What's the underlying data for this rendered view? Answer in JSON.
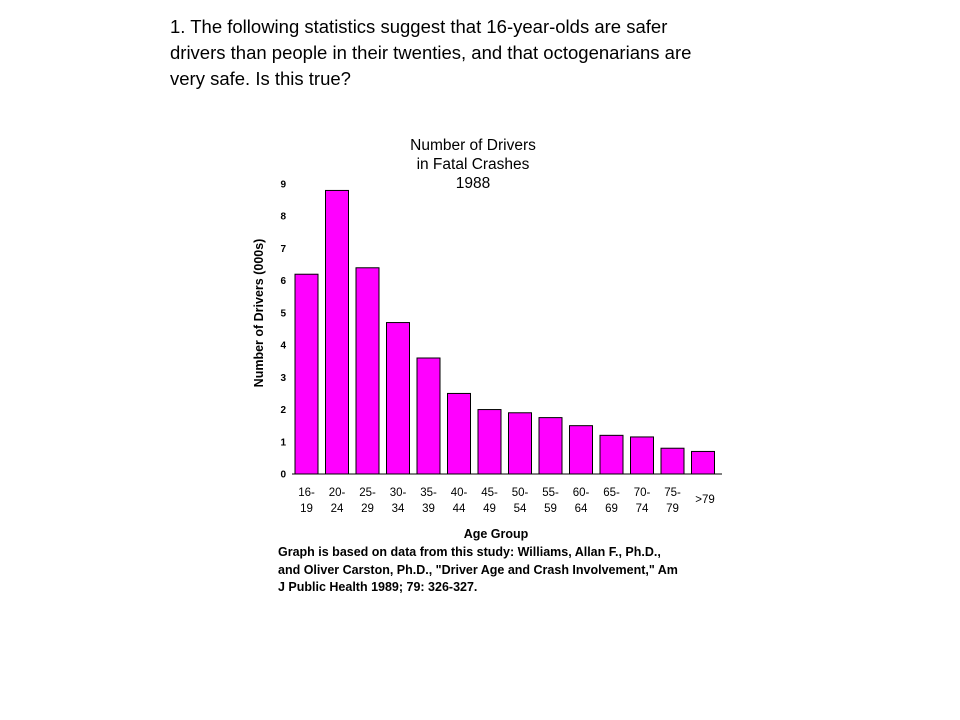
{
  "question": {
    "lines": [
      "1.  The following statistics suggest that 16-year-olds are safer",
      "drivers than people in their twenties, and that octogenarians are",
      "very safe.  Is this true?"
    ]
  },
  "chart_data": {
    "type": "bar",
    "title": [
      "Number of Drivers",
      "in Fatal Crashes",
      "1988"
    ],
    "xlabel": "Age Group",
    "ylabel": "Number of Drivers (000s)",
    "ylim": [
      0,
      9
    ],
    "yticks": [
      "0",
      "1",
      "2",
      "3",
      "4",
      "5",
      "6",
      "7",
      "8",
      "9"
    ],
    "categories": [
      [
        "16-",
        "19"
      ],
      [
        "20-",
        "24"
      ],
      [
        "25-",
        "29"
      ],
      [
        "30-",
        "34"
      ],
      [
        "35-",
        "39"
      ],
      [
        "40-",
        "44"
      ],
      [
        "45-",
        "49"
      ],
      [
        "50-",
        "54"
      ],
      [
        "55-",
        "59"
      ],
      [
        "60-",
        "64"
      ],
      [
        "65-",
        "69"
      ],
      [
        "70-",
        "74"
      ],
      [
        "75-",
        "79"
      ],
      [
        ">79"
      ]
    ],
    "values": [
      6.2,
      8.8,
      6.4,
      4.7,
      3.6,
      2.5,
      2.0,
      1.9,
      1.75,
      1.5,
      1.2,
      1.15,
      0.8,
      0.7
    ],
    "bar_color": "#ff00ff",
    "grid": false,
    "legend": "none"
  },
  "source": {
    "lines": [
      "Graph is based on data from this study:  Williams, Allan F., Ph.D.,",
      "and Oliver Carston, Ph.D., \"Driver Age and Crash Involvement,\" Am",
      "J Public Health 1989; 79: 326-327."
    ]
  }
}
